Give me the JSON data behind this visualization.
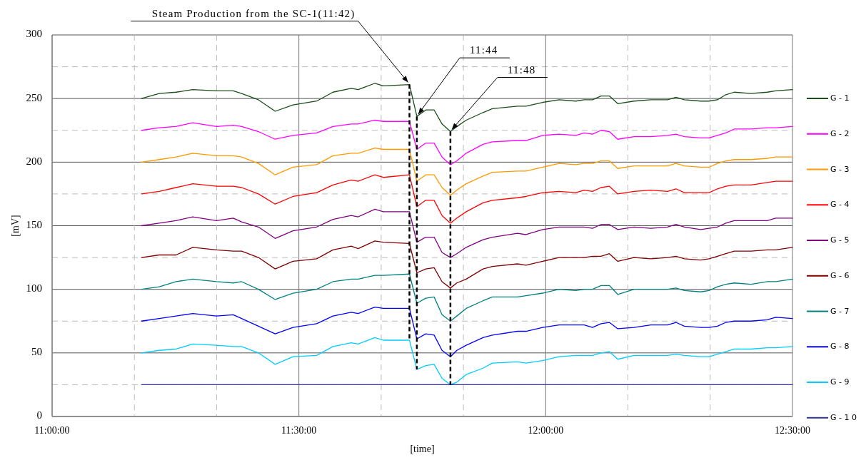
{
  "chart_data": {
    "type": "line",
    "xlabel": "[time]",
    "ylabel": "[mV]",
    "x": [
      11.181,
      11.217,
      11.251,
      11.285,
      11.333,
      11.367,
      11.384,
      11.418,
      11.452,
      11.488,
      11.536,
      11.569,
      11.606,
      11.62,
      11.654,
      11.671,
      11.724,
      11.739,
      11.757,
      11.774,
      11.79,
      11.807,
      11.82,
      11.839,
      11.873,
      11.892,
      11.943,
      11.96,
      11.994,
      12.027,
      12.061,
      12.078,
      12.095,
      12.112,
      12.129,
      12.146,
      12.179,
      12.213,
      12.247,
      12.264,
      12.281,
      12.314,
      12.331,
      12.348,
      12.365,
      12.382,
      12.416,
      12.449,
      12.466,
      12.5
    ],
    "series": [
      {
        "name": "G - 1",
        "color": "#1a4d1a",
        "values": [
          250,
          254,
          255,
          257,
          256,
          256,
          254,
          249,
          240,
          245,
          248,
          255,
          258,
          257,
          262,
          260,
          261,
          236,
          241,
          241,
          230,
          224,
          228,
          233,
          239,
          242,
          244,
          244,
          247,
          249,
          248,
          249,
          249,
          252,
          252,
          246,
          248,
          249,
          249,
          251,
          249,
          248,
          248,
          249,
          253,
          255,
          254,
          255,
          256,
          257
        ]
      },
      {
        "name": "G - 2",
        "color": "#ff00ff",
        "values": [
          225,
          227,
          228,
          231,
          228,
          229,
          228,
          224,
          218,
          221,
          223,
          228,
          230,
          230,
          233,
          232,
          232,
          210,
          215,
          215,
          204,
          198,
          201,
          207,
          214,
          216,
          217,
          217,
          221,
          222,
          221,
          223,
          222,
          225,
          224,
          218,
          220,
          220,
          221,
          222,
          220,
          219,
          219,
          221,
          223,
          226,
          226,
          227,
          227,
          228
        ]
      },
      {
        "name": "G - 3",
        "color": "#ff9900",
        "values": [
          200,
          202,
          204,
          207,
          205,
          205,
          204,
          199,
          190,
          196,
          198,
          205,
          207,
          207,
          211,
          210,
          210,
          185,
          190,
          190,
          180,
          174,
          178,
          183,
          189,
          192,
          193,
          193,
          196,
          199,
          198,
          199,
          199,
          201,
          201,
          195,
          197,
          197,
          197,
          199,
          197,
          196,
          196,
          199,
          201,
          202,
          202,
          203,
          204,
          204
        ]
      },
      {
        "name": "G - 4",
        "color": "#ff0000",
        "values": [
          175,
          177,
          180,
          183,
          181,
          181,
          180,
          175,
          167,
          173,
          176,
          182,
          186,
          185,
          190,
          188,
          190,
          165,
          170,
          170,
          158,
          152,
          156,
          161,
          168,
          170,
          172,
          173,
          176,
          177,
          176,
          178,
          177,
          180,
          181,
          175,
          177,
          178,
          177,
          179,
          176,
          176,
          176,
          179,
          181,
          182,
          182,
          184,
          185,
          185
        ]
      },
      {
        "name": "G - 5",
        "color": "#800080",
        "values": [
          150,
          152,
          154,
          157,
          154,
          156,
          153,
          149,
          140,
          146,
          149,
          155,
          158,
          157,
          163,
          161,
          161,
          137,
          141,
          141,
          129,
          125,
          128,
          133,
          139,
          141,
          144,
          143,
          147,
          149,
          149,
          149,
          148,
          151,
          151,
          147,
          149,
          148,
          149,
          151,
          149,
          147,
          148,
          149,
          152,
          154,
          154,
          154,
          156,
          156
        ]
      },
      {
        "name": "G - 6",
        "color": "#800000",
        "values": [
          125,
          127,
          127,
          133,
          131,
          130,
          130,
          125,
          116,
          122,
          124,
          131,
          134,
          132,
          138,
          137,
          136,
          113,
          116,
          117,
          106,
          101,
          105,
          108,
          116,
          118,
          120,
          119,
          122,
          125,
          125,
          125,
          126,
          126,
          128,
          122,
          125,
          124,
          125,
          126,
          124,
          123,
          124,
          126,
          128,
          130,
          130,
          131,
          131,
          133
        ]
      },
      {
        "name": "G - 7",
        "color": "#008080",
        "values": [
          100,
          102,
          106,
          108,
          106,
          105,
          106,
          100,
          92,
          97,
          100,
          106,
          108,
          108,
          111,
          111,
          112,
          89,
          93,
          94,
          80,
          75,
          79,
          85,
          91,
          94,
          94,
          95,
          97,
          100,
          99,
          100,
          100,
          103,
          103,
          96,
          100,
          100,
          100,
          101,
          99,
          98,
          99,
          102,
          104,
          105,
          104,
          106,
          106,
          108
        ]
      },
      {
        "name": "G - 8",
        "color": "#0000ff",
        "values": [
          75,
          77,
          79,
          81,
          79,
          80,
          77,
          71,
          65,
          70,
          73,
          79,
          82,
          81,
          86,
          85,
          85,
          61,
          65,
          64,
          52,
          47,
          52,
          56,
          62,
          64,
          67,
          67,
          70,
          72,
          72,
          72,
          70,
          73,
          74,
          69,
          70,
          72,
          72,
          74,
          71,
          70,
          70,
          71,
          74,
          75,
          75,
          76,
          78,
          77
        ]
      },
      {
        "name": "G - 9",
        "color": "#00ccff",
        "values": [
          50,
          52,
          53,
          57,
          56,
          55,
          55,
          50,
          41,
          47,
          48,
          55,
          58,
          57,
          62,
          60,
          60,
          37,
          40,
          41,
          30,
          25,
          27,
          33,
          38,
          42,
          43,
          42,
          44,
          47,
          48,
          48,
          48,
          50,
          51,
          45,
          48,
          48,
          48,
          49,
          48,
          47,
          47,
          49,
          51,
          53,
          53,
          54,
          54,
          55
        ]
      },
      {
        "name": "G - 1 0",
        "color": "#333399",
        "x": [
          11.181,
          12.5
        ],
        "values": [
          25,
          25
        ]
      }
    ],
    "xlim": [
      11,
      12.5
    ],
    "xticks": [
      {
        "value": 11,
        "label": "11:00:00"
      },
      {
        "value": 11.1667,
        "label": null
      },
      {
        "value": 11.3333,
        "label": null
      },
      {
        "value": 11.5,
        "label": "11:30:00"
      },
      {
        "value": 11.6667,
        "label": null
      },
      {
        "value": 11.8333,
        "label": null
      },
      {
        "value": 12,
        "label": "12:00:00"
      },
      {
        "value": 12.1667,
        "label": null
      },
      {
        "value": 12.3333,
        "label": null
      },
      {
        "value": 12.5,
        "label": "12:30:00"
      }
    ],
    "ylim": [
      0,
      300
    ],
    "yticks": [
      0,
      {
        "value": 25,
        "label": null
      },
      50,
      {
        "value": 75,
        "label": null
      },
      100,
      {
        "value": 125,
        "label": null
      },
      150,
      {
        "value": 175,
        "label": null
      },
      200,
      {
        "value": 225,
        "label": null
      },
      250,
      {
        "value": 275,
        "label": null
      },
      300
    ],
    "grid": true,
    "legend": "right",
    "line_style": "solid",
    "ref_lines": [
      {
        "axis": "x",
        "value": 11.724,
        "color": "#000000",
        "line_style": "dashed"
      },
      {
        "axis": "x",
        "value": 11.739,
        "color": "#000000",
        "line_style": "dashed"
      },
      {
        "axis": "x",
        "value": 11.807,
        "color": "#000000",
        "line_style": "dashed"
      }
    ],
    "annotations": [
      {
        "text": "Steam Production from the SC-1(11:42)",
        "x": 11.724,
        "y": 261
      },
      {
        "text": "11:44",
        "x": 11.739,
        "y": 236
      },
      {
        "text": "11:48",
        "x": 11.807,
        "y": 224
      }
    ]
  }
}
